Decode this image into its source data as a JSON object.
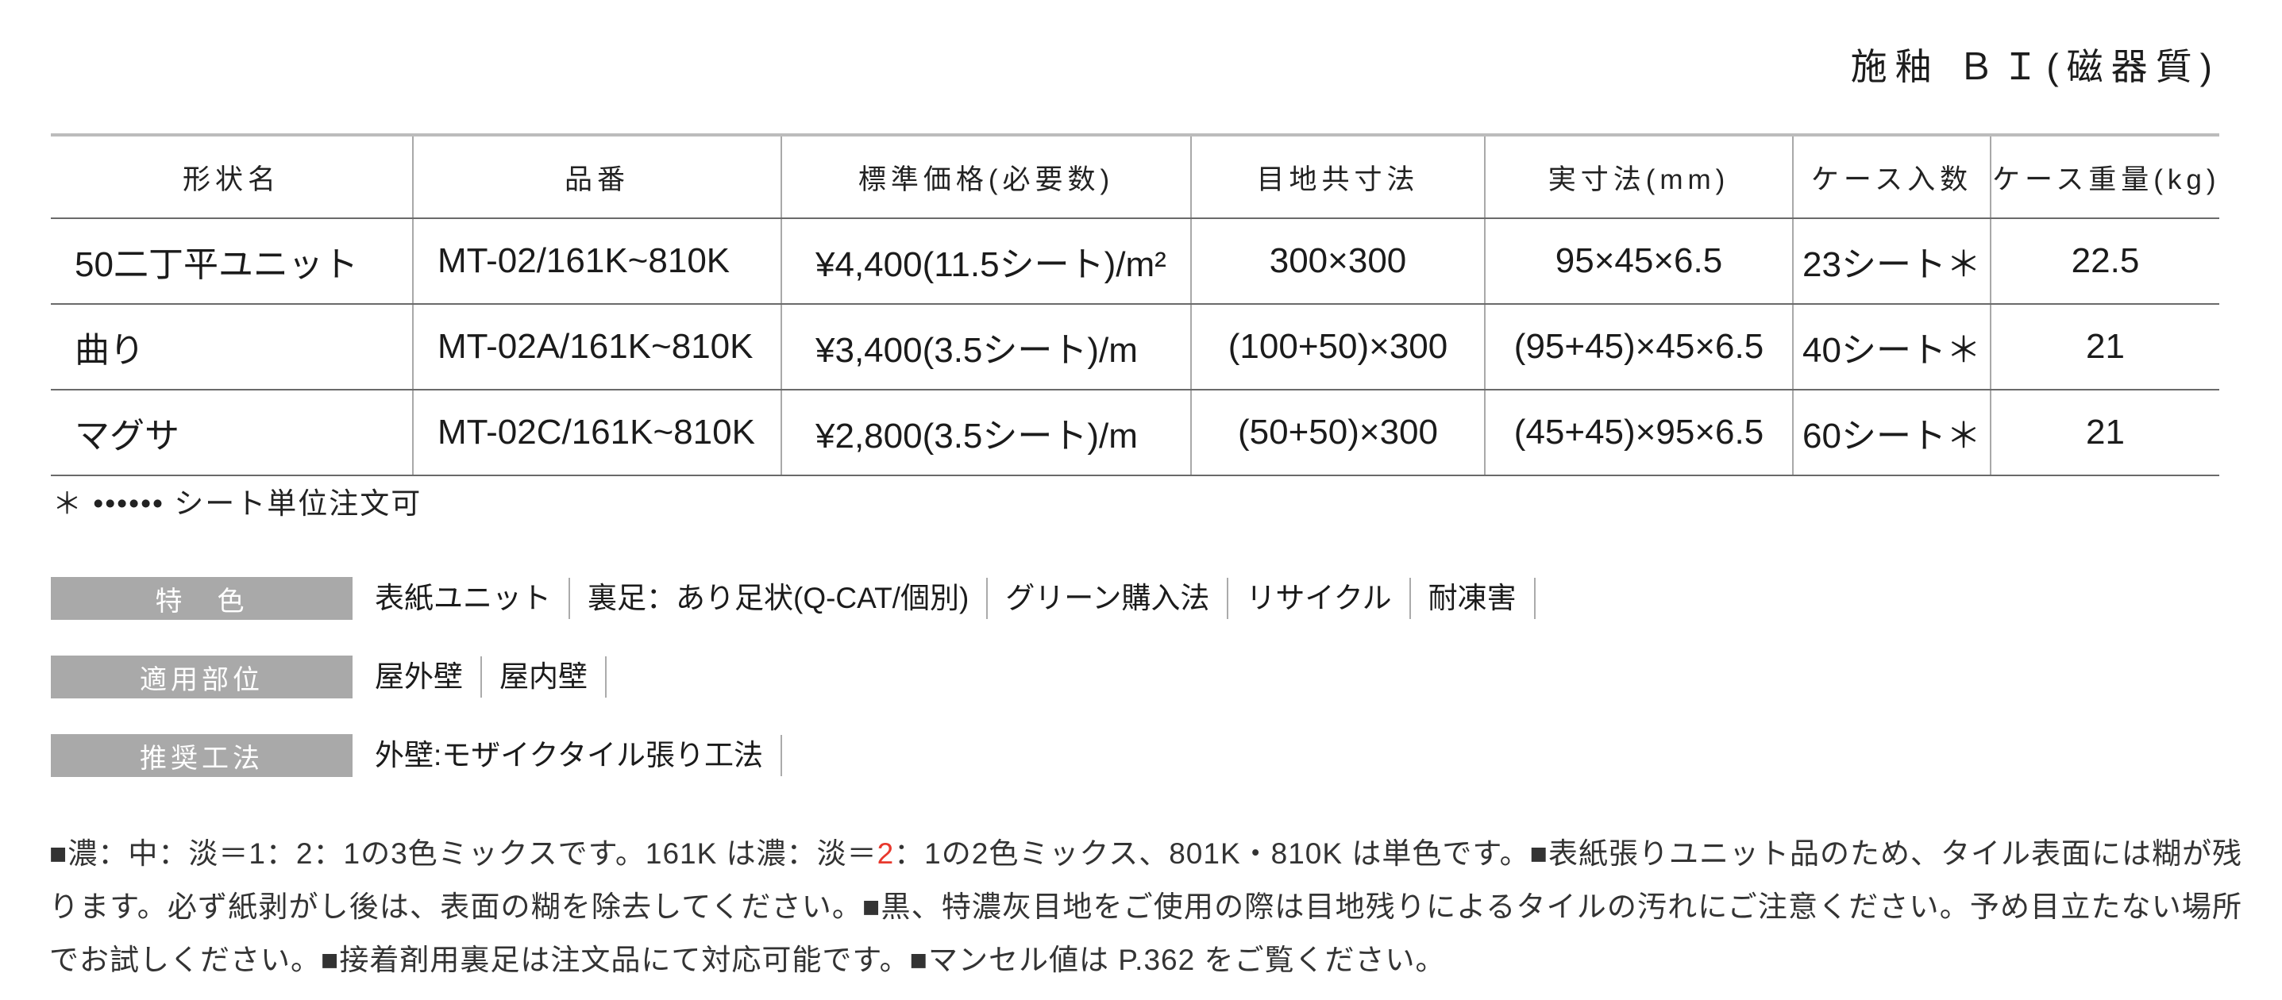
{
  "colors": {
    "accent_red": "#e8382d",
    "label_bg": "#a9a9a9",
    "text": "#1d1d1d"
  },
  "header": {
    "title": "施釉 ＢＩ(磁器質)"
  },
  "table": {
    "columns": [
      "形状名",
      "品番",
      "標準価格(必要数)",
      "目地共寸法",
      "実寸法(mm)",
      "ケース入数",
      "ケース重量(kg)"
    ],
    "rows": [
      [
        "50二丁平ユニット",
        "MT-02/161K~810K",
        "¥4,400(11.5シート)/m²",
        "300×300",
        "95×45×6.5",
        "23シート＊",
        "22.5"
      ],
      [
        "曲り",
        "MT-02A/161K~810K",
        "¥3,400(3.5シート)/m",
        "(100+50)×300",
        "(95+45)×45×6.5",
        "40シート＊",
        "21"
      ],
      [
        "マグサ",
        "MT-02C/161K~810K",
        "¥2,800(3.5シート)/m",
        "(50+50)×300",
        "(45+45)×95×6.5",
        "60シート＊",
        "21"
      ]
    ],
    "footnote": "＊ •••••• シート単位注文可"
  },
  "features": [
    {
      "label": "特　色",
      "items": [
        "表紙ユニット",
        "裏足：あり足状(Q-CAT/個別)",
        "グリーン購入法",
        "リサイクル",
        "耐凍害"
      ]
    },
    {
      "label": "適用部位",
      "items": [
        "屋外壁",
        "屋内壁"
      ]
    },
    {
      "label": "推奨工法",
      "items": [
        "外壁:モザイクタイル張り工法"
      ]
    }
  ],
  "notes": {
    "segments": [
      {
        "text": "■濃：中：淡＝1：2：1の3色ミックスです。161K は濃：淡＝"
      },
      {
        "text": "2",
        "red": true
      },
      {
        "text": "：1の2色ミックス、801K・810K は単色です。■表紙張りユニット品のため、タイル表面には糊が残ります。必ず紙剥がし後は、表面の糊を除去してください。■黒、特濃灰目地をご使用の際は目地残りによるタイルの汚れにご注意ください。予め目立たない場所でお試しください。■接着剤用裏足は注文品にて対応可能です。■マンセル値は P.362 をご覧ください。"
      }
    ]
  }
}
